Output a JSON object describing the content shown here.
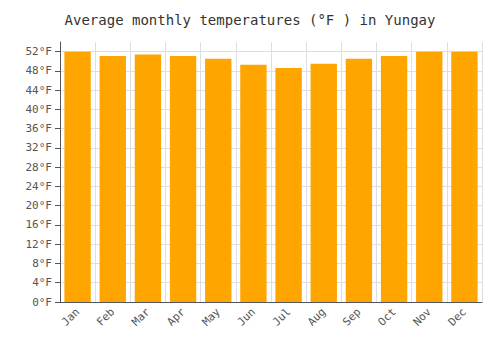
{
  "chart_data": {
    "type": "bar",
    "title": "Average monthly temperatures (°F ) in Yungay",
    "categories": [
      "Jan",
      "Feb",
      "Mar",
      "Apr",
      "May",
      "Jun",
      "Jul",
      "Aug",
      "Sep",
      "Oct",
      "Nov",
      "Dec"
    ],
    "values": [
      52.0,
      51.1,
      51.4,
      51.1,
      50.5,
      49.3,
      48.6,
      49.5,
      50.5,
      51.1,
      52.0,
      52.0
    ],
    "color": "#FFA500",
    "ylim": [
      0,
      54
    ],
    "yticks": [
      {
        "value": 0,
        "label": "0°F"
      },
      {
        "value": 4,
        "label": "4°F"
      },
      {
        "value": 8,
        "label": "8°F"
      },
      {
        "value": 12,
        "label": "12°F"
      },
      {
        "value": 16,
        "label": "16°F"
      },
      {
        "value": 20,
        "label": "20°F"
      },
      {
        "value": 24,
        "label": "24°F"
      },
      {
        "value": 28,
        "label": "28°F"
      },
      {
        "value": 32,
        "label": "32°F"
      },
      {
        "value": 36,
        "label": "36°F"
      },
      {
        "value": 40,
        "label": "40°F"
      },
      {
        "value": 44,
        "label": "44°F"
      },
      {
        "value": 48,
        "label": "48°F"
      },
      {
        "value": 52,
        "label": "52°F"
      }
    ],
    "grid": true
  }
}
